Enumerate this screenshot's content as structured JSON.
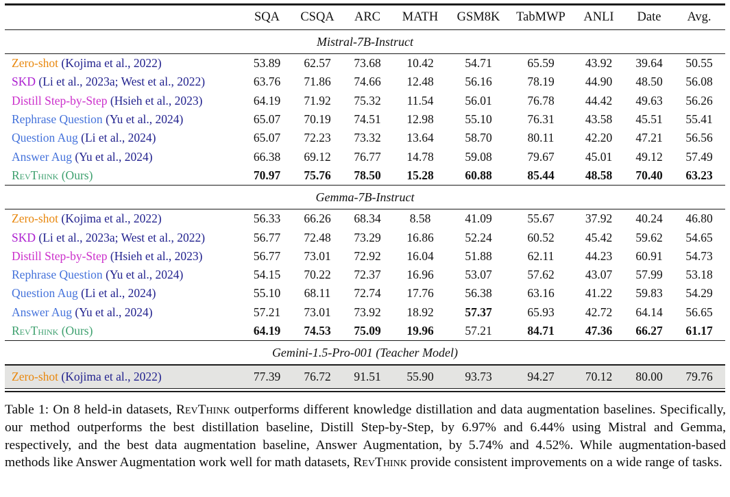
{
  "colors": {
    "zero_shot_orange": "#E8870D",
    "skd_violet": "#AC1FD0",
    "distill_magenta": "#CB2FCB",
    "aug_blue": "#4472DB",
    "revthink_green": "#3DA06E",
    "citation_navy": "#22228E",
    "shaded_row_bg": "#E4E4E2",
    "rule_black": "#1b1b1b"
  },
  "table": {
    "columns": [
      "SQA",
      "CSQA",
      "ARC",
      "MATH",
      "GSM8K",
      "TabMWP",
      "ANLI",
      "Date",
      "Avg."
    ],
    "sections": [
      {
        "header": "Mistral-7B-Instruct",
        "rows": [
          {
            "method": "Zero-shot",
            "smallcaps": false,
            "color": "zero_shot_orange",
            "citation": "(Kojima et al., 2022)",
            "citation_color": "citation_navy",
            "values": [
              "53.89",
              "62.57",
              "73.68",
              "10.42",
              "54.71",
              "65.59",
              "43.92",
              "39.64",
              "50.55"
            ],
            "bold": []
          },
          {
            "method": "SKD",
            "smallcaps": false,
            "color": "skd_violet",
            "citation": "(Li et al., 2023a; West et al., 2022)",
            "citation_color": "citation_navy",
            "values": [
              "63.76",
              "71.86",
              "74.66",
              "12.48",
              "56.16",
              "78.19",
              "44.90",
              "48.50",
              "56.08"
            ],
            "bold": []
          },
          {
            "method": "Distill Step-by-Step",
            "smallcaps": false,
            "color": "distill_magenta",
            "citation": "(Hsieh et al., 2023)",
            "citation_color": "citation_navy",
            "values": [
              "64.19",
              "71.92",
              "75.32",
              "11.54",
              "56.01",
              "76.78",
              "44.42",
              "49.63",
              "56.26"
            ],
            "bold": []
          },
          {
            "method": "Rephrase Question",
            "smallcaps": false,
            "color": "aug_blue",
            "citation": "(Yu et al., 2024)",
            "citation_color": "citation_navy",
            "values": [
              "65.07",
              "70.19",
              "74.51",
              "12.98",
              "55.10",
              "76.31",
              "43.58",
              "45.51",
              "55.41"
            ],
            "bold": []
          },
          {
            "method": "Question Aug",
            "smallcaps": false,
            "color": "aug_blue",
            "citation": "(Li et al., 2024)",
            "citation_color": "citation_navy",
            "values": [
              "65.07",
              "72.23",
              "73.32",
              "13.64",
              "58.70",
              "80.11",
              "42.20",
              "47.21",
              "56.56"
            ],
            "bold": []
          },
          {
            "method": "Answer Aug",
            "smallcaps": false,
            "color": "aug_blue",
            "citation": "(Yu et al., 2024)",
            "citation_color": "citation_navy",
            "values": [
              "66.38",
              "69.12",
              "76.77",
              "14.78",
              "59.08",
              "79.67",
              "45.01",
              "49.12",
              "57.49"
            ],
            "bold": []
          },
          {
            "method": "RevThink",
            "smallcaps": true,
            "color": "revthink_green",
            "citation": "(Ours)",
            "citation_color": "revthink_green",
            "values": [
              "70.97",
              "75.76",
              "78.50",
              "15.28",
              "60.88",
              "85.44",
              "48.58",
              "70.40",
              "63.23"
            ],
            "bold": [
              0,
              1,
              2,
              3,
              4,
              5,
              6,
              7,
              8
            ]
          }
        ]
      },
      {
        "header": "Gemma-7B-Instruct",
        "rows": [
          {
            "method": "Zero-shot",
            "smallcaps": false,
            "color": "zero_shot_orange",
            "citation": "(Kojima et al., 2022)",
            "citation_color": "citation_navy",
            "values": [
              "56.33",
              "66.26",
              "68.34",
              "8.58",
              "41.09",
              "55.67",
              "37.92",
              "40.24",
              "46.80"
            ],
            "bold": []
          },
          {
            "method": "SKD",
            "smallcaps": false,
            "color": "skd_violet",
            "citation": "(Li et al., 2023a; West et al., 2022)",
            "citation_color": "citation_navy",
            "values": [
              "56.77",
              "72.48",
              "73.29",
              "16.86",
              "52.24",
              "60.52",
              "45.42",
              "59.62",
              "54.65"
            ],
            "bold": []
          },
          {
            "method": "Distill Step-by-Step",
            "smallcaps": false,
            "color": "distill_magenta",
            "citation": "(Hsieh et al., 2023)",
            "citation_color": "citation_navy",
            "values": [
              "56.77",
              "73.01",
              "72.92",
              "16.04",
              "51.88",
              "62.11",
              "44.23",
              "60.91",
              "54.73"
            ],
            "bold": []
          },
          {
            "method": "Rephrase Question",
            "smallcaps": false,
            "color": "aug_blue",
            "citation": "(Yu et al., 2024)",
            "citation_color": "citation_navy",
            "values": [
              "54.15",
              "70.22",
              "72.37",
              "16.96",
              "53.07",
              "57.62",
              "43.07",
              "57.99",
              "53.18"
            ],
            "bold": []
          },
          {
            "method": "Question Aug",
            "smallcaps": false,
            "color": "aug_blue",
            "citation": "(Li et al., 2024)",
            "citation_color": "citation_navy",
            "values": [
              "55.10",
              "68.11",
              "72.74",
              "17.76",
              "56.38",
              "63.16",
              "41.22",
              "59.83",
              "54.29"
            ],
            "bold": []
          },
          {
            "method": "Answer Aug",
            "smallcaps": false,
            "color": "aug_blue",
            "citation": "(Yu et al., 2024)",
            "citation_color": "citation_navy",
            "values": [
              "57.21",
              "73.01",
              "73.92",
              "18.92",
              "57.37",
              "65.93",
              "42.72",
              "64.14",
              "56.65"
            ],
            "bold": [
              4
            ]
          },
          {
            "method": "RevThink",
            "smallcaps": true,
            "color": "revthink_green",
            "citation": "(Ours)",
            "citation_color": "revthink_green",
            "values": [
              "64.19",
              "74.53",
              "75.09",
              "19.96",
              "57.21",
              "84.71",
              "47.36",
              "66.27",
              "61.17"
            ],
            "bold": [
              0,
              1,
              2,
              3,
              5,
              6,
              7,
              8
            ]
          }
        ]
      },
      {
        "header": "Gemini-1.5-Pro-001 (Teacher Model)",
        "rows": [
          {
            "method": "Zero-shot",
            "smallcaps": false,
            "color": "zero_shot_orange",
            "citation": "(Kojima et al., 2022)",
            "citation_color": "citation_navy",
            "values": [
              "77.39",
              "76.72",
              "91.51",
              "55.90",
              "93.73",
              "94.27",
              "70.12",
              "80.00",
              "79.76"
            ],
            "bold": [],
            "shaded": true
          }
        ]
      }
    ]
  },
  "caption": {
    "parts": [
      {
        "text": "Table 1: On 8 held-in datasets, ",
        "smallcaps": false
      },
      {
        "text": "RevThink",
        "smallcaps": true
      },
      {
        "text": " outperforms different knowledge distillation and data augmentation baselines. Specifically, our method outperforms the best distillation baseline, Distill Step-by-Step, by 6.97% and 6.44% using Mistral and Gemma, respectively, and the best data augmentation baseline, Answer Augmentation, by 5.74% and 4.52%. While augmentation-based methods like Answer Augmentation work well for math datasets, ",
        "smallcaps": false
      },
      {
        "text": "RevThink",
        "smallcaps": true
      },
      {
        "text": " provide consistent improvements on a wide range of tasks.",
        "smallcaps": false
      }
    ]
  }
}
